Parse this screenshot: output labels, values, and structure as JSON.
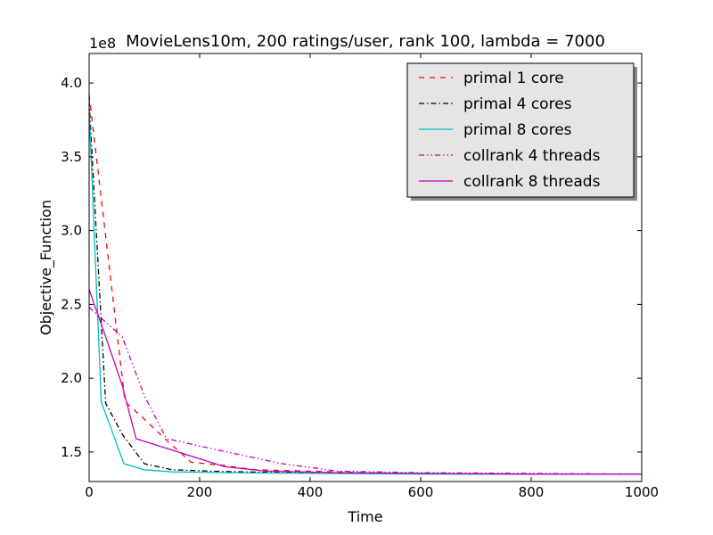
{
  "chart_data": {
    "type": "line",
    "title": "MovieLens10m, 200 ratings/user, rank 100, lambda = 7000",
    "xlabel": "Time",
    "ylabel": "Objective_Function",
    "y_offset_label": "1e8",
    "xlim": [
      0,
      1000
    ],
    "ylim": [
      1.3,
      4.2
    ],
    "xticks": [
      0,
      200,
      400,
      600,
      800,
      1000
    ],
    "xtick_labels": [
      "0",
      "200",
      "400",
      "600",
      "800",
      "1000"
    ],
    "yticks": [
      1.5,
      2.0,
      2.5,
      3.0,
      3.5,
      4.0
    ],
    "ytick_labels": [
      "1.5",
      "2.0",
      "2.5",
      "3.0",
      "3.5",
      "4.0"
    ],
    "grid": false,
    "legend_position": "top-right",
    "series": [
      {
        "name": "primal 1 core",
        "color": "#ff0000",
        "dash": "dashed",
        "x": [
          0,
          65,
          95,
          140,
          185,
          240,
          300,
          400,
          500,
          600,
          800,
          1000
        ],
        "y": [
          3.92,
          1.84,
          1.74,
          1.58,
          1.43,
          1.41,
          1.38,
          1.37,
          1.36,
          1.355,
          1.35,
          1.35
        ]
      },
      {
        "name": "primal 4 cores",
        "color": "#000000",
        "dash": "dashdot",
        "x": [
          0,
          30,
          60,
          100,
          150,
          220,
          350,
          500,
          700,
          1000
        ],
        "y": [
          3.88,
          1.83,
          1.62,
          1.42,
          1.38,
          1.37,
          1.36,
          1.355,
          1.35,
          1.35
        ]
      },
      {
        "name": "primal 8 cores",
        "color": "#00bfbf",
        "dash": "solid",
        "x": [
          0,
          22,
          63,
          100,
          150,
          250,
          400,
          600,
          1000
        ],
        "y": [
          3.82,
          1.84,
          1.42,
          1.38,
          1.365,
          1.36,
          1.355,
          1.35,
          1.35
        ]
      },
      {
        "name": "collrank 4 threads",
        "color": "#bf00bf",
        "dash": "dashdotdot",
        "x": [
          0,
          30,
          60,
          100,
          140,
          250,
          350,
          450,
          600,
          800,
          1000
        ],
        "y": [
          2.48,
          2.38,
          2.28,
          1.88,
          1.59,
          1.5,
          1.42,
          1.37,
          1.36,
          1.355,
          1.35
        ]
      },
      {
        "name": "collrank 8 threads",
        "color": "#bf00bf",
        "dash": "solid",
        "x": [
          0,
          30,
          60,
          85,
          170,
          245,
          320,
          450,
          600,
          800,
          1000
        ],
        "y": [
          2.6,
          2.28,
          1.95,
          1.59,
          1.49,
          1.4,
          1.37,
          1.36,
          1.355,
          1.35,
          1.35
        ]
      }
    ]
  }
}
